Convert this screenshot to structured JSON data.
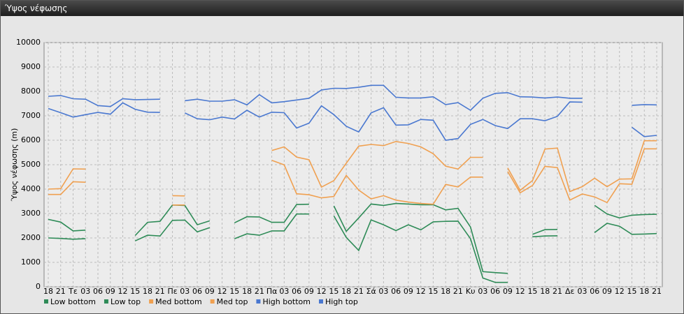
{
  "chart_data": {
    "type": "line",
    "title": "Ύψος νέφωσης",
    "y_label": "Ύψος νέφωσης (m)",
    "categories": [
      "18",
      "21",
      "Τε",
      "03",
      "06",
      "09",
      "12",
      "15",
      "18",
      "21",
      "Πε",
      "03",
      "06",
      "09",
      "12",
      "15",
      "18",
      "21",
      "Πα",
      "03",
      "06",
      "09",
      "12",
      "15",
      "18",
      "21",
      "Σά",
      "03",
      "06",
      "09",
      "12",
      "15",
      "18",
      "21",
      "Κυ",
      "03",
      "06",
      "09",
      "12",
      "15",
      "18",
      "21",
      "Δε",
      "03",
      "06",
      "09",
      "12",
      "15",
      "18",
      "21"
    ],
    "ylim": [
      0,
      10000
    ],
    "yticks": [
      0,
      1000,
      2000,
      3000,
      4000,
      5000,
      6000,
      7000,
      8000,
      9000,
      10000
    ],
    "grid": true,
    "series": [
      {
        "name": "Low bottom",
        "color": "#2e8b57",
        "values": [
          2000,
          1980,
          1950,
          1970,
          null,
          null,
          null,
          1880,
          2110,
          2080,
          2720,
          2730,
          2250,
          2420,
          null,
          1970,
          2170,
          2110,
          2290,
          2290,
          2980,
          2980,
          null,
          2900,
          2020,
          1490,
          2740,
          2540,
          2300,
          2540,
          2330,
          2660,
          2680,
          2690,
          1970,
          360,
          180,
          180,
          null,
          2050,
          2080,
          2090,
          null,
          null,
          2220,
          2600,
          2480,
          2150,
          2160,
          2180
        ]
      },
      {
        "name": "Low top",
        "color": "#2e8b57",
        "values": [
          2760,
          2650,
          2290,
          2320,
          null,
          null,
          null,
          2100,
          2640,
          2680,
          3350,
          3330,
          2540,
          2700,
          null,
          2620,
          2870,
          2860,
          2640,
          2640,
          3370,
          3380,
          null,
          3310,
          2270,
          2820,
          3390,
          3330,
          3410,
          3390,
          3360,
          3360,
          3150,
          3210,
          2450,
          620,
          580,
          550,
          null,
          2150,
          2340,
          2350,
          null,
          null,
          3330,
          2980,
          2820,
          2930,
          2960,
          2970
        ]
      },
      {
        "name": "Med bottom",
        "color": "#f0a050",
        "values": [
          3780,
          3780,
          4300,
          4280,
          null,
          null,
          null,
          null,
          null,
          null,
          3350,
          3350,
          null,
          null,
          null,
          null,
          null,
          null,
          5180,
          4990,
          3810,
          3770,
          3640,
          3700,
          4560,
          3960,
          3600,
          3730,
          3550,
          3470,
          3410,
          3380,
          4190,
          4090,
          4490,
          4490,
          null,
          4720,
          3850,
          4150,
          4930,
          4880,
          3550,
          3800,
          3680,
          3450,
          4220,
          4200,
          5650,
          5650
        ]
      },
      {
        "name": "Med top",
        "color": "#f0a050",
        "values": [
          4000,
          4020,
          4830,
          4820,
          null,
          null,
          null,
          null,
          null,
          null,
          3730,
          3720,
          null,
          null,
          null,
          null,
          null,
          null,
          5580,
          5730,
          5310,
          5200,
          4080,
          4350,
          5060,
          5760,
          5830,
          5780,
          5950,
          5870,
          5730,
          5450,
          4940,
          4820,
          5300,
          5300,
          null,
          4870,
          3950,
          4350,
          5640,
          5680,
          3900,
          4100,
          4450,
          4100,
          4410,
          4420,
          5980,
          5980
        ]
      },
      {
        "name": "High bottom",
        "color": "#4a78d0",
        "values": [
          7300,
          7130,
          6950,
          7050,
          7140,
          7070,
          7530,
          7270,
          7150,
          7140,
          null,
          7120,
          6880,
          6840,
          6950,
          6870,
          7230,
          6950,
          7150,
          7130,
          6500,
          6700,
          7410,
          7050,
          6570,
          6340,
          7120,
          7330,
          6620,
          6630,
          6850,
          6820,
          6000,
          6070,
          6650,
          6850,
          6600,
          6480,
          6880,
          6880,
          6800,
          6980,
          7570,
          7560,
          null,
          null,
          null,
          6530,
          6150,
          6200
        ]
      },
      {
        "name": "High top",
        "color": "#4a78d0",
        "values": [
          7800,
          7830,
          7700,
          7680,
          7420,
          7380,
          7700,
          7660,
          7670,
          7680,
          null,
          7620,
          7680,
          7600,
          7600,
          7660,
          7450,
          7870,
          7530,
          7580,
          7650,
          7720,
          8060,
          8130,
          8120,
          8170,
          8250,
          8250,
          7760,
          7730,
          7730,
          7780,
          7460,
          7540,
          7230,
          7720,
          7920,
          7950,
          7780,
          7770,
          7730,
          7770,
          7720,
          7720,
          null,
          null,
          null,
          7430,
          7460,
          7450
        ]
      }
    ]
  }
}
